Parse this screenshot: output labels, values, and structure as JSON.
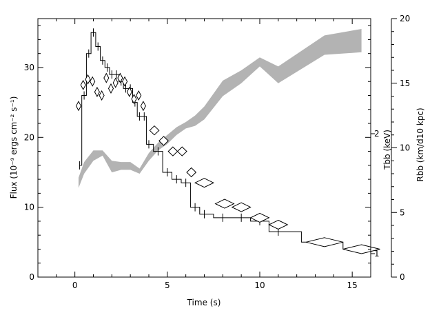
{
  "chart_data": {
    "type": "line",
    "xlabel": "Time (s)",
    "ylabel": "Flux (10⁻⁹ ergs cm⁻² s⁻¹)",
    "y2label_t": "Tbb (keV)",
    "y2label_r": "Rbb (km/d10 kpc)",
    "xlim": [
      -2,
      16
    ],
    "ylim": [
      0,
      37
    ],
    "y2lim": [
      0,
      20
    ],
    "x_ticks": [
      "0",
      "5",
      "10",
      "15"
    ],
    "y_ticks": [
      "0",
      "10",
      "20",
      "30"
    ],
    "y2_ticks": [
      "0",
      "5",
      "10",
      "15",
      "20"
    ],
    "t_ticks": [
      "1",
      "2"
    ],
    "grid": false,
    "series": [
      {
        "kind": "step",
        "x": [
          0.25,
          0.5,
          0.75,
          1.0,
          1.25,
          1.5,
          1.75,
          2.0,
          2.25,
          2.5,
          2.75,
          3.0,
          3.25,
          3.5,
          3.75,
          4.0,
          4.5,
          5.0,
          5.5,
          6.0,
          6.5,
          7.0,
          8.0,
          9.0,
          10.0,
          11.0,
          13.5,
          15.5
        ],
        "y": [
          16,
          26,
          32,
          35,
          33,
          31,
          30,
          29,
          29,
          28,
          27,
          27,
          25,
          23,
          23,
          19,
          18,
          15,
          14,
          13.5,
          10,
          9,
          8.5,
          8.5,
          8,
          6.5,
          5,
          4
        ]
      },
      {
        "kind": "diamonds",
        "x": [
          0.2,
          0.45,
          0.7,
          0.95,
          1.2,
          1.45,
          1.7,
          1.95,
          2.2,
          2.45,
          2.7,
          2.95,
          3.2,
          3.45,
          3.7,
          4.3,
          4.8,
          5.3,
          5.8,
          6.3,
          7.0,
          8.1,
          9.0,
          10.0,
          11.0,
          13.5,
          15.5
        ],
        "y": [
          24.5,
          27.5,
          28.3,
          28.0,
          26.5,
          26.0,
          28.5,
          27.0,
          27.8,
          28.5,
          28.0,
          26.5,
          25.5,
          26.0,
          24.5,
          21.0,
          19.5,
          18.0,
          18.0,
          15.0,
          13.5,
          10.5,
          10.0,
          8.5,
          7.5,
          5.0,
          4.0
        ],
        "xerr": [
          0.12,
          0.12,
          0.12,
          0.12,
          0.12,
          0.12,
          0.12,
          0.12,
          0.12,
          0.12,
          0.12,
          0.12,
          0.12,
          0.12,
          0.12,
          0.25,
          0.25,
          0.25,
          0.25,
          0.25,
          0.5,
          0.5,
          0.5,
          0.5,
          0.5,
          1.0,
          1.0
        ]
      },
      {
        "kind": "band",
        "axis": "right",
        "x": [
          0.2,
          0.5,
          1.0,
          1.5,
          2.0,
          2.5,
          3.0,
          3.5,
          4.0,
          4.5,
          5.0,
          5.5,
          6.0,
          6.5,
          7.0,
          8.0,
          9.0,
          10.0,
          11.0,
          13.5,
          15.5
        ],
        "lo": [
          6.9,
          8.0,
          9.0,
          9.4,
          8.1,
          8.3,
          8.3,
          8.0,
          9.0,
          9.8,
          10.3,
          11.0,
          11.5,
          11.7,
          12.2,
          14.0,
          15.0,
          16.3,
          15.0,
          17.2,
          17.4
        ],
        "hi": [
          7.7,
          8.9,
          9.8,
          9.8,
          9.0,
          8.9,
          8.9,
          8.4,
          9.6,
          10.4,
          11.0,
          11.6,
          12.0,
          12.5,
          13.2,
          15.2,
          16.0,
          17.0,
          16.3,
          18.7,
          19.2
        ]
      }
    ]
  }
}
